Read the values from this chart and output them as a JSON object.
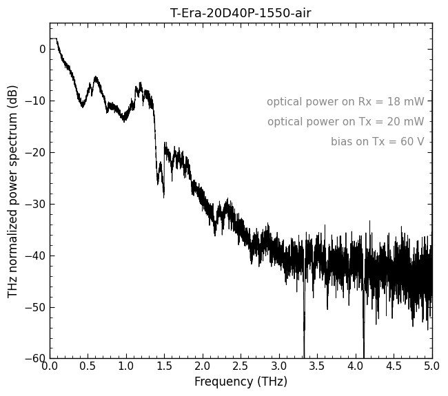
{
  "title": "T-Era-20D40P-1550-air",
  "xlabel": "Frequency (THz)",
  "ylabel": "THz normalized power spectrum (dB)",
  "xlim": [
    0.0,
    5.0
  ],
  "ylim": [
    -60,
    5
  ],
  "xticks": [
    0.0,
    0.5,
    1.0,
    1.5,
    2.0,
    2.5,
    3.0,
    3.5,
    4.0,
    4.5,
    5.0
  ],
  "yticks": [
    0,
    -10,
    -20,
    -30,
    -40,
    -50,
    -60
  ],
  "annotation_lines": [
    "optical power on Rx = 18 mW",
    "optical power on Tx = 20 mW",
    "bias on Tx = 60 V"
  ],
  "annotation_color": "#888888",
  "line_color": "#000000",
  "background_color": "#ffffff",
  "title_fontsize": 13,
  "label_fontsize": 12,
  "tick_fontsize": 11,
  "annotation_fontsize": 11
}
